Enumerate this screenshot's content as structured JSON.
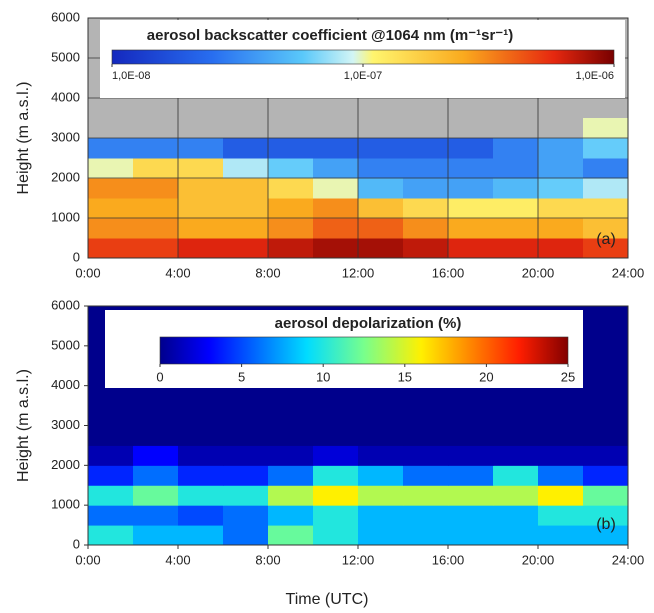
{
  "x_label": "Time (UTC)",
  "chart_data": [
    {
      "type": "heatmap",
      "panel_label": "(a)",
      "y_label": "Height (m a.s.l.)",
      "xlim": [
        0,
        24
      ],
      "ylim": [
        0,
        6000
      ],
      "xticks": [
        {
          "value": 0,
          "label": "0:00"
        },
        {
          "value": 4,
          "label": "4:00"
        },
        {
          "value": 8,
          "label": "8:00"
        },
        {
          "value": 12,
          "label": "12:00"
        },
        {
          "value": 16,
          "label": "16:00"
        },
        {
          "value": 20,
          "label": "20:00"
        },
        {
          "value": 24,
          "label": "24:00"
        }
      ],
      "yticks": [
        0,
        1000,
        2000,
        3000,
        4000,
        5000,
        6000
      ],
      "grid": true,
      "background": "#b4b4b4",
      "x": [
        1,
        3,
        5,
        7,
        9,
        11,
        13,
        15,
        17,
        19,
        21,
        23
      ],
      "y": [
        250,
        750,
        1250,
        1750,
        2250,
        2750,
        3250,
        3750,
        4250,
        4750,
        5250,
        5750
      ],
      "z": [
        [
          5e-07,
          5e-07,
          6e-07,
          6e-07,
          7e-07,
          8e-07,
          8e-07,
          7e-07,
          6e-07,
          6e-07,
          6e-07,
          5e-07
        ],
        [
          3e-07,
          3e-07,
          2.5e-07,
          2.5e-07,
          3e-07,
          4e-07,
          4e-07,
          3e-07,
          2.5e-07,
          2.5e-07,
          2.5e-07,
          2e-07
        ],
        [
          2.5e-07,
          2.5e-07,
          2e-07,
          2e-07,
          2.5e-07,
          3e-07,
          2e-07,
          1.5e-07,
          1.2e-07,
          1.2e-07,
          1.5e-07,
          1.5e-07
        ],
        [
          3e-07,
          3e-07,
          2e-07,
          2e-07,
          1.5e-07,
          1e-07,
          5e-08,
          4e-08,
          4e-08,
          5e-08,
          6e-08,
          8e-08
        ],
        [
          1e-07,
          1.5e-07,
          1.5e-07,
          8e-08,
          6e-08,
          4e-08,
          3e-08,
          3e-08,
          3e-08,
          3e-08,
          4e-08,
          3e-08
        ],
        [
          3e-08,
          3e-08,
          3e-08,
          2e-08,
          2e-08,
          2e-08,
          2e-08,
          2e-08,
          2e-08,
          3e-08,
          4e-08,
          6e-08
        ],
        [
          null,
          null,
          null,
          null,
          null,
          null,
          null,
          null,
          null,
          null,
          null,
          1e-07
        ],
        [
          null,
          null,
          null,
          null,
          null,
          null,
          null,
          null,
          null,
          null,
          null,
          null
        ],
        [
          null,
          null,
          null,
          null,
          null,
          null,
          null,
          null,
          null,
          null,
          null,
          null
        ],
        [
          null,
          null,
          null,
          null,
          null,
          null,
          null,
          null,
          null,
          null,
          null,
          null
        ],
        [
          null,
          null,
          null,
          null,
          null,
          null,
          null,
          null,
          null,
          null,
          null,
          null
        ],
        [
          null,
          null,
          null,
          null,
          null,
          null,
          null,
          null,
          null,
          null,
          null,
          null
        ]
      ],
      "colorbar": {
        "title": "aerosol backscatter coefficient @1064 nm (m⁻¹sr⁻¹)",
        "scale": "log",
        "colormap": "backscatter",
        "lim": [
          1e-08,
          1e-06
        ],
        "ticks": [
          {
            "value": 1e-08,
            "label": "1,0E-08"
          },
          {
            "value": 1e-07,
            "label": "1,0E-07"
          },
          {
            "value": 1e-06,
            "label": "1,0E-06"
          }
        ]
      }
    },
    {
      "type": "heatmap",
      "panel_label": "(b)",
      "y_label": "Height (m a.s.l.)",
      "xlim": [
        0,
        24
      ],
      "ylim": [
        0,
        6000
      ],
      "xticks": [
        {
          "value": 0,
          "label": "0:00"
        },
        {
          "value": 4,
          "label": "4:00"
        },
        {
          "value": 8,
          "label": "8:00"
        },
        {
          "value": 12,
          "label": "12:00"
        },
        {
          "value": 16,
          "label": "16:00"
        },
        {
          "value": 20,
          "label": "20:00"
        },
        {
          "value": 24,
          "label": "24:00"
        }
      ],
      "yticks": [
        0,
        1000,
        2000,
        3000,
        4000,
        5000,
        6000
      ],
      "grid": false,
      "background": "#00008f",
      "x": [
        1,
        3,
        5,
        7,
        9,
        11,
        13,
        15,
        17,
        19,
        21,
        23
      ],
      "y": [
        250,
        750,
        1250,
        1750,
        2250,
        2750,
        3250,
        3750,
        4250,
        4750,
        5250,
        5750
      ],
      "z": [
        [
          10,
          8,
          8,
          6,
          12,
          10,
          8,
          8,
          8,
          8,
          8,
          8
        ],
        [
          6,
          6,
          5,
          6,
          8,
          10,
          8,
          8,
          8,
          8,
          10,
          10
        ],
        [
          10,
          12,
          10,
          10,
          14,
          16,
          14,
          14,
          14,
          14,
          16,
          12
        ],
        [
          4,
          6,
          4,
          4,
          6,
          10,
          8,
          6,
          6,
          10,
          6,
          4
        ],
        [
          1,
          3,
          1,
          1,
          1,
          2,
          1,
          1,
          1,
          1,
          1,
          1
        ],
        [
          0,
          0,
          0,
          0,
          0,
          0,
          0,
          0,
          0,
          0,
          0,
          0
        ],
        [
          0,
          0,
          0,
          0,
          0,
          0,
          0,
          0,
          0,
          0,
          0,
          0
        ],
        [
          0,
          0,
          0,
          0,
          0,
          0,
          0,
          0,
          0,
          0,
          0,
          0
        ],
        [
          0,
          0,
          0,
          0,
          0,
          0,
          0,
          0,
          0,
          0,
          0,
          0
        ],
        [
          0,
          0,
          0,
          0,
          0,
          0,
          0,
          0,
          0,
          0,
          0,
          0
        ],
        [
          0,
          0,
          0,
          0,
          0,
          0,
          0,
          0,
          0,
          0,
          0,
          0
        ],
        [
          0,
          0,
          0,
          0,
          0,
          0,
          0,
          0,
          0,
          0,
          0,
          0
        ]
      ],
      "colorbar": {
        "title": "aerosol depolarization (%)",
        "scale": "linear",
        "colormap": "jet",
        "lim": [
          0,
          25
        ],
        "ticks": [
          0,
          5,
          10,
          15,
          20,
          25
        ]
      }
    }
  ]
}
